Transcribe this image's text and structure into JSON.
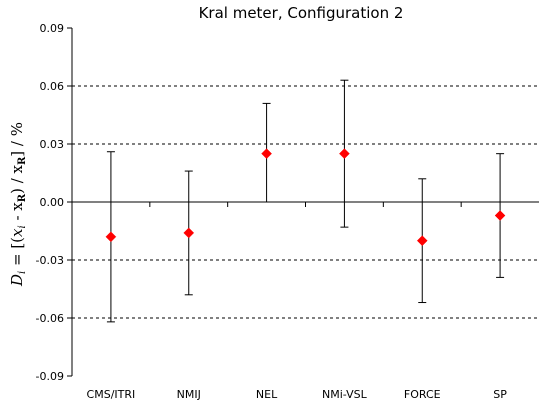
{
  "chart_data": {
    "type": "scatter",
    "title": "Kral meter, Configuration 2",
    "ylabel": "D i = [(x i - x R) / x R] / %",
    "ylabel_parts": {
      "d": "D",
      "d_sub": "i",
      "eq": " = [(",
      "x": "x",
      "x_sub": "i",
      "minus": " - x",
      "r_sub": "R",
      "div": ") / x",
      "r_sub2": "R",
      "tail": "] / %"
    },
    "ylim": [
      -0.09,
      0.09
    ],
    "yticks": [
      "0.09",
      "0.06",
      "0.03",
      "0.00",
      "-0.03",
      "-0.06",
      "-0.09"
    ],
    "ytick_values": [
      0.09,
      0.06,
      0.03,
      0.0,
      -0.03,
      -0.06,
      -0.09
    ],
    "categories": [
      "CMS/ITRI",
      "NMIJ",
      "NEL",
      "NMi-VSL",
      "FORCE",
      "SP"
    ],
    "values": [
      -0.018,
      -0.016,
      0.025,
      0.025,
      -0.02,
      -0.007
    ],
    "error_upper": [
      0.026,
      0.016,
      0.051,
      0.063,
      0.012,
      0.025
    ],
    "error_lower": [
      -0.062,
      -0.048,
      0.0,
      -0.013,
      -0.052,
      -0.039
    ],
    "grid": "dashed horizontal",
    "marker_color": "#ff0000",
    "grid_color": "#000000"
  }
}
